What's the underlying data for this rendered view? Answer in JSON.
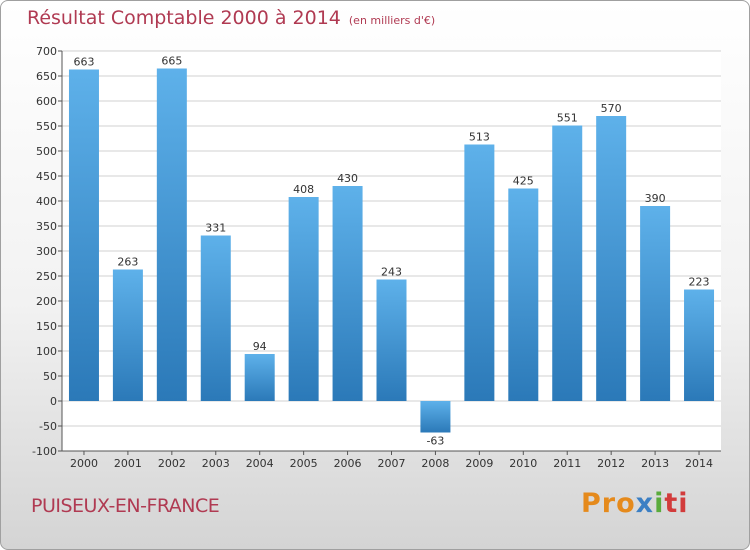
{
  "header": {
    "title": "Résultat Comptable 2000 à 2014",
    "unit": "(en milliers d'€)"
  },
  "footer": {
    "commune": "PUISEUX-EN-FRANCE",
    "brand": "Proxiti"
  },
  "colors": {
    "title": "#b03a52",
    "bar_light": "#5eb1ea",
    "bar_dark": "#2b79b8"
  },
  "chart_data": {
    "type": "bar",
    "title": "Résultat Comptable 2000 à 2014",
    "categories": [
      "2000",
      "2001",
      "2002",
      "2003",
      "2004",
      "2005",
      "2006",
      "2007",
      "2008",
      "2009",
      "2010",
      "2011",
      "2012",
      "2013",
      "2014"
    ],
    "values": [
      663,
      263,
      665,
      331,
      94,
      408,
      430,
      243,
      -63,
      513,
      425,
      551,
      570,
      390,
      223
    ],
    "ylim": [
      -100,
      700
    ],
    "yticks": [
      -100,
      -50,
      0,
      50,
      100,
      150,
      200,
      250,
      300,
      350,
      400,
      450,
      500,
      550,
      600,
      650,
      700
    ],
    "grid": true,
    "legend": "none"
  }
}
